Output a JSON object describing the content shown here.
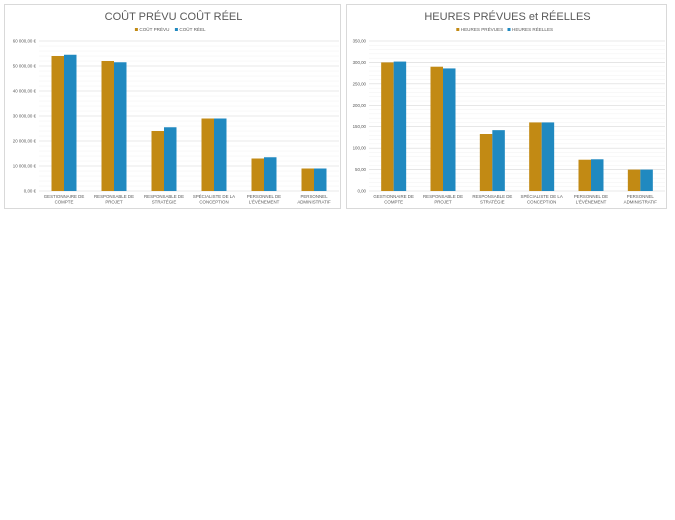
{
  "chart_data": [
    {
      "type": "bar",
      "title": "COÛT PRÉVU COÛT RÉEL",
      "categories": [
        [
          "GESTIONNAIRE DE",
          "COMPTE"
        ],
        [
          "RESPONSABLE DE",
          "PROJET"
        ],
        [
          "RESPONSABLE DE",
          "STRATÉGIE"
        ],
        [
          "SPÉCIALISTE DE LA",
          "CONCEPTION"
        ],
        [
          "PERSONNEL DE",
          "L'ÉVÉNEMENT"
        ],
        [
          "PERSONNEL",
          "ADMINISTRATIF"
        ]
      ],
      "series": [
        {
          "name": "COÛT PRÉVU",
          "color": "#c28a14",
          "values": [
            54000,
            52000,
            24000,
            29000,
            13000,
            9000
          ]
        },
        {
          "name": "COÛT RÉEL",
          "color": "#2089c0",
          "values": [
            54500,
            51500,
            25500,
            29000,
            13500,
            9000
          ]
        }
      ],
      "ylim": [
        0,
        60000
      ],
      "yticks": [
        0,
        10000,
        20000,
        30000,
        40000,
        50000,
        60000
      ],
      "ytick_labels": [
        "0,00 €",
        "10 000,00 €",
        "20 000,00 €",
        "30 000,00 €",
        "40 000,00 €",
        "50 000,00 €",
        "60 000,00 €"
      ],
      "minor_grid_step": 2000,
      "grid": true,
      "legend": "top-center"
    },
    {
      "type": "bar",
      "title": "HEURES PRÉVUES et RÉELLES",
      "categories": [
        [
          "GESTIONNAIRE DE",
          "COMPTE"
        ],
        [
          "RESPONSABLE DE",
          "PROJET"
        ],
        [
          "RESPONSABLE DE",
          "STRATÉGIE"
        ],
        [
          "SPÉCIALISTE DE LA",
          "CONCEPTION"
        ],
        [
          "PERSONNEL DE",
          "L'ÉVÉNEMENT"
        ],
        [
          "PERSONNEL",
          "ADMINISTRATIF"
        ]
      ],
      "series": [
        {
          "name": "HEURES PRÉVUES",
          "color": "#c28a14",
          "values": [
            300,
            290,
            133,
            160,
            73,
            50
          ]
        },
        {
          "name": "HEURES RÉELLES",
          "color": "#2089c0",
          "values": [
            302,
            286,
            142,
            160,
            74,
            50
          ]
        }
      ],
      "ylim": [
        0,
        350
      ],
      "yticks": [
        0,
        50,
        100,
        150,
        200,
        250,
        300,
        350
      ],
      "ytick_labels": [
        "0,00",
        "50,00",
        "100,00",
        "150,00",
        "200,00",
        "250,00",
        "300,00",
        "350,00"
      ],
      "minor_grid_step": 10,
      "grid": true,
      "legend": "top-center"
    }
  ]
}
